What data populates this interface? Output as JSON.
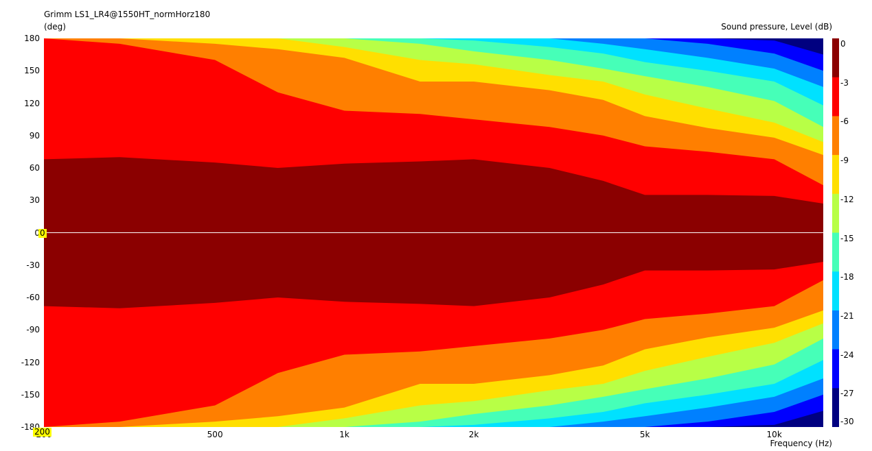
{
  "header": {
    "title": "Grimm LS1_LR4@1550HT_normHorz180",
    "y_unit": "(deg)",
    "colorbar_label": "Sound pressure, Level  (dB)",
    "x_label": "Frequency  (Hz)"
  },
  "cursor": {
    "y_value": "0",
    "x_value": "200"
  },
  "chart_data": {
    "type": "heatmap",
    "title": "Grimm LS1_LR4@1550HT_normHorz180",
    "xlabel": "Frequency  (Hz)",
    "ylabel": "(deg)",
    "x_scale": "log",
    "xlim": [
      200,
      13000
    ],
    "ylim": [
      -180,
      180
    ],
    "x_ticks": [
      "200",
      "500",
      "1k",
      "2k",
      "5k",
      "10k"
    ],
    "x_tick_values": [
      200,
      500,
      1000,
      2000,
      5000,
      10000
    ],
    "y_ticks": [
      "180",
      "150",
      "120",
      "90",
      "60",
      "30",
      "0",
      "-30",
      "-60",
      "-90",
      "-120",
      "-150",
      "-180"
    ],
    "y_tick_values": [
      180,
      150,
      120,
      90,
      60,
      30,
      0,
      -30,
      -60,
      -90,
      -120,
      -150,
      -180
    ],
    "colorbar": {
      "label": "Sound pressure, Level  (dB)",
      "ticks": [
        "0",
        "-3",
        "-6",
        "-9",
        "-12",
        "-15",
        "-18",
        "-21",
        "-24",
        "-27",
        "-30"
      ],
      "colors": [
        "#8b0000",
        "#ff0000",
        "#ff7f00",
        "#ffdf00",
        "#b8ff46",
        "#46ffb8",
        "#00e1ff",
        "#0080ff",
        "#0000ff",
        "#000080",
        "#000000"
      ]
    },
    "contours": {
      "freqs": [
        200,
        300,
        500,
        700,
        1000,
        1500,
        2000,
        3000,
        4000,
        5000,
        7000,
        10000,
        13000
      ],
      "bounds_deg": [
        [
          68,
          70,
          65,
          60,
          64,
          66,
          68,
          60,
          48,
          35,
          35,
          34,
          27
        ],
        [
          180,
          175,
          160,
          130,
          113,
          110,
          105,
          98,
          90,
          80,
          75,
          68,
          44
        ],
        [
          180,
          180,
          175,
          170,
          162,
          140,
          140,
          132,
          123,
          108,
          97,
          88,
          72
        ],
        [
          180,
          180,
          180,
          180,
          172,
          160,
          156,
          146,
          140,
          128,
          115,
          102,
          84
        ],
        [
          180,
          180,
          180,
          180,
          180,
          175,
          168,
          160,
          152,
          145,
          135,
          122,
          98
        ],
        [
          180,
          180,
          180,
          180,
          180,
          180,
          178,
          172,
          166,
          158,
          150,
          140,
          118
        ],
        [
          180,
          180,
          180,
          180,
          180,
          180,
          180,
          180,
          175,
          170,
          162,
          152,
          135
        ],
        [
          180,
          180,
          180,
          180,
          180,
          180,
          180,
          180,
          180,
          180,
          175,
          166,
          150
        ],
        [
          180,
          180,
          180,
          180,
          180,
          180,
          180,
          180,
          180,
          180,
          180,
          178,
          165
        ],
        [
          180,
          180,
          180,
          180,
          180,
          180,
          180,
          180,
          180,
          180,
          180,
          180,
          180
        ]
      ]
    },
    "reference_line_deg": 0,
    "grid": false
  }
}
